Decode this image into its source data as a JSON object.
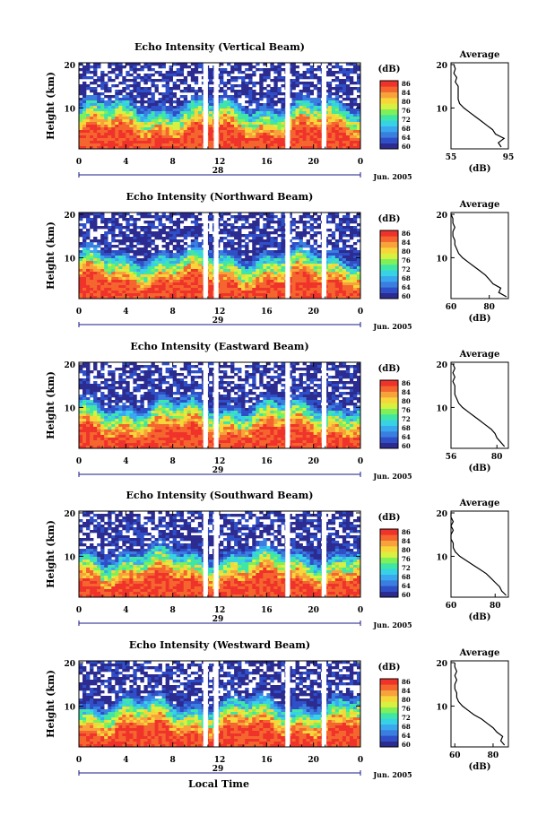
{
  "figure": {
    "bottom_xlabel": "Local Time"
  },
  "chart_data": [
    {
      "type": "heatmap",
      "title": "Echo Intensity (Vertical Beam)",
      "ylabel": "Height (km)",
      "yticks": [
        "20",
        "10"
      ],
      "xticks": [
        "0",
        "4",
        "8",
        "12",
        "16",
        "20",
        "0"
      ],
      "date_day": "28",
      "date_month_year": "Jun. 2005",
      "colorbar": {
        "label": "(dB)",
        "ticks": [
          "86",
          "84",
          "80",
          "76",
          "72",
          "68",
          "64",
          "60"
        ],
        "colors": [
          "#2b2b90",
          "#2f4fc8",
          "#3a7ee0",
          "#3aa8ee",
          "#37d2e6",
          "#3fe6a6",
          "#7ef05a",
          "#d8f040",
          "#f7d63a",
          "#f7a23a",
          "#f5652e",
          "#f0332a"
        ]
      },
      "gaps_hours": [
        [
          10.6,
          11.0
        ],
        [
          11.5,
          11.9
        ],
        [
          17.6,
          18.0
        ],
        [
          20.7,
          21.1
        ]
      ],
      "average": {
        "title": "Average",
        "xlabel": "(dB)",
        "xticks": [
          "55",
          "95"
        ],
        "xlim": [
          55,
          95
        ],
        "yticks": [
          "20",
          "10"
        ],
        "heights_km": [
          1,
          2,
          3,
          4,
          5,
          6,
          7,
          8,
          9,
          10,
          11,
          12,
          13,
          14,
          15,
          16,
          17,
          18,
          19,
          20
        ],
        "values": [
          90,
          88,
          92,
          86,
          84,
          80,
          76,
          72,
          68,
          64,
          61,
          60,
          60,
          60,
          60,
          58,
          59,
          57,
          58,
          57
        ]
      }
    },
    {
      "type": "heatmap",
      "title": "Echo Intensity (Northward Beam)",
      "ylabel": "Height (km)",
      "yticks": [
        "20",
        "10"
      ],
      "xticks": [
        "0",
        "4",
        "8",
        "12",
        "16",
        "20",
        "0"
      ],
      "date_day": "29",
      "date_month_year": "Jun. 2005",
      "colorbar": {
        "label": "(dB)",
        "ticks": [
          "86",
          "84",
          "80",
          "76",
          "72",
          "68",
          "64",
          "60"
        ],
        "colors": [
          "#2b2b90",
          "#2f4fc8",
          "#3a7ee0",
          "#3aa8ee",
          "#37d2e6",
          "#3fe6a6",
          "#7ef05a",
          "#d8f040",
          "#f7d63a",
          "#f7a23a",
          "#f5652e",
          "#f0332a"
        ]
      },
      "gaps_hours": [
        [
          10.6,
          11.0
        ],
        [
          11.5,
          11.9
        ],
        [
          17.6,
          18.0
        ],
        [
          20.7,
          21.1
        ]
      ],
      "average": {
        "title": "Average",
        "xlabel": "(dB)",
        "xticks": [
          "60",
          "80"
        ],
        "xlim": [
          60,
          90
        ],
        "yticks": [
          "20",
          "10"
        ],
        "heights_km": [
          1,
          2,
          3,
          4,
          5,
          6,
          7,
          8,
          9,
          10,
          11,
          12,
          13,
          14,
          15,
          16,
          17,
          18,
          19,
          20
        ],
        "values": [
          89,
          85,
          86,
          82,
          80,
          78,
          75,
          72,
          69,
          66,
          64,
          63,
          62,
          62,
          61,
          61,
          62,
          61,
          61,
          60
        ]
      }
    },
    {
      "type": "heatmap",
      "title": "Echo Intensity (Eastward Beam)",
      "ylabel": "Height (km)",
      "yticks": [
        "20",
        "10"
      ],
      "xticks": [
        "0",
        "4",
        "8",
        "12",
        "16",
        "20",
        "0"
      ],
      "date_day": "29",
      "date_month_year": "Jun. 2005",
      "colorbar": {
        "label": "(dB)",
        "ticks": [
          "86",
          "84",
          "80",
          "76",
          "72",
          "68",
          "64",
          "60"
        ],
        "colors": [
          "#2b2b90",
          "#2f4fc8",
          "#3a7ee0",
          "#3aa8ee",
          "#37d2e6",
          "#3fe6a6",
          "#7ef05a",
          "#d8f040",
          "#f7d63a",
          "#f7a23a",
          "#f5652e",
          "#f0332a"
        ]
      },
      "gaps_hours": [
        [
          10.6,
          11.0
        ],
        [
          11.5,
          11.9
        ],
        [
          17.6,
          18.0
        ],
        [
          20.7,
          21.1
        ]
      ],
      "average": {
        "title": "Average",
        "xlabel": "(dB)",
        "xticks": [
          "56",
          "80"
        ],
        "xlim": [
          56,
          86
        ],
        "yticks": [
          "20",
          "10"
        ],
        "heights_km": [
          1,
          2,
          3,
          4,
          5,
          6,
          7,
          8,
          9,
          10,
          11,
          12,
          13,
          14,
          15,
          16,
          17,
          18,
          19,
          20
        ],
        "values": [
          84,
          82,
          80,
          79,
          77,
          74,
          71,
          68,
          65,
          62,
          60,
          59,
          58,
          58,
          58,
          57,
          58,
          57,
          58,
          57
        ]
      }
    },
    {
      "type": "heatmap",
      "title": "Echo Intensity (Southward Beam)",
      "ylabel": "Height (km)",
      "yticks": [
        "20",
        "10"
      ],
      "xticks": [
        "0",
        "4",
        "8",
        "12",
        "16",
        "20",
        "0"
      ],
      "date_day": "29",
      "date_month_year": "Jun. 2005",
      "colorbar": {
        "label": "(dB)",
        "ticks": [
          "86",
          "84",
          "80",
          "76",
          "72",
          "68",
          "64",
          "60"
        ],
        "colors": [
          "#2b2b90",
          "#2f4fc8",
          "#3a7ee0",
          "#3aa8ee",
          "#37d2e6",
          "#3fe6a6",
          "#7ef05a",
          "#d8f040",
          "#f7d63a",
          "#f7a23a",
          "#f5652e",
          "#f0332a"
        ]
      },
      "gaps_hours": [
        [
          10.6,
          11.0
        ],
        [
          11.5,
          11.9
        ],
        [
          17.6,
          18.0
        ],
        [
          20.7,
          21.1
        ]
      ],
      "average": {
        "title": "Average",
        "xlabel": "(dB)",
        "xticks": [
          "60",
          "80"
        ],
        "xlim": [
          60,
          86
        ],
        "yticks": [
          "20",
          "10"
        ],
        "heights_km": [
          1,
          2,
          3,
          4,
          5,
          6,
          7,
          8,
          9,
          10,
          11,
          12,
          13,
          14,
          15,
          16,
          17,
          18,
          19,
          20
        ],
        "values": [
          85,
          83,
          82,
          80,
          78,
          76,
          73,
          70,
          67,
          64,
          62,
          61,
          61,
          60,
          60,
          61,
          60,
          61,
          60,
          60
        ]
      }
    },
    {
      "type": "heatmap",
      "title": "Echo Intensity (Westward Beam)",
      "ylabel": "Height (km)",
      "yticks": [
        "20",
        "10"
      ],
      "xticks": [
        "0",
        "4",
        "8",
        "12",
        "16",
        "20",
        "0"
      ],
      "date_day": "29",
      "date_month_year": "Jun. 2005",
      "colorbar": {
        "label": "(dB)",
        "ticks": [
          "86",
          "84",
          "80",
          "76",
          "72",
          "68",
          "64",
          "60"
        ],
        "colors": [
          "#2b2b90",
          "#2f4fc8",
          "#3a7ee0",
          "#3aa8ee",
          "#37d2e6",
          "#3fe6a6",
          "#7ef05a",
          "#d8f040",
          "#f7d63a",
          "#f7a23a",
          "#f5652e",
          "#f0332a"
        ]
      },
      "gaps_hours": [
        [
          10.6,
          11.0
        ],
        [
          11.5,
          11.9
        ],
        [
          17.6,
          18.0
        ],
        [
          20.7,
          21.1
        ]
      ],
      "average": {
        "title": "Average",
        "xlabel": "(dB)",
        "xticks": [
          "60",
          "80"
        ],
        "xlim": [
          58,
          88
        ],
        "yticks": [
          "20",
          "10"
        ],
        "heights_km": [
          1,
          2,
          3,
          4,
          5,
          6,
          7,
          8,
          9,
          10,
          11,
          12,
          13,
          14,
          15,
          16,
          17,
          18,
          19,
          20
        ],
        "values": [
          86,
          84,
          85,
          82,
          80,
          77,
          74,
          70,
          67,
          64,
          62,
          61,
          61,
          60,
          60,
          61,
          60,
          61,
          60,
          60
        ]
      }
    }
  ]
}
